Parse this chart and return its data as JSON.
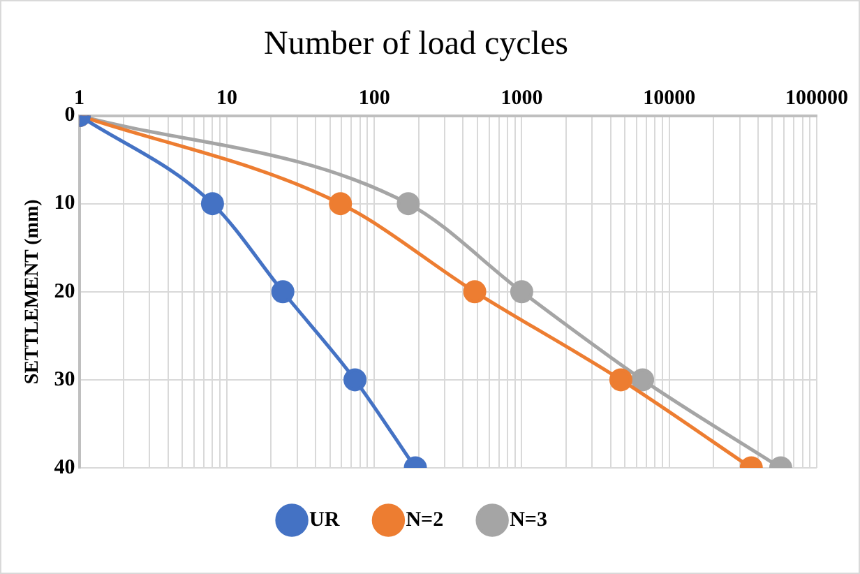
{
  "chart_data": {
    "type": "line",
    "title": "Number of load cycles",
    "ylabel": "SETTLEMENT (mm)",
    "log": "x",
    "xlim": [
      1,
      100000
    ],
    "xticks": [
      1,
      {
        "value": 2,
        "label": null
      },
      {
        "value": 3,
        "label": null
      },
      {
        "value": 4,
        "label": null
      },
      {
        "value": 5,
        "label": null
      },
      {
        "value": 6,
        "label": null
      },
      {
        "value": 7,
        "label": null
      },
      {
        "value": 8,
        "label": null
      },
      {
        "value": 9,
        "label": null
      },
      10,
      {
        "value": 20,
        "label": null
      },
      {
        "value": 30,
        "label": null
      },
      {
        "value": 40,
        "label": null
      },
      {
        "value": 50,
        "label": null
      },
      {
        "value": 60,
        "label": null
      },
      {
        "value": 70,
        "label": null
      },
      {
        "value": 80,
        "label": null
      },
      {
        "value": 90,
        "label": null
      },
      100,
      {
        "value": 200,
        "label": null
      },
      {
        "value": 300,
        "label": null
      },
      {
        "value": 400,
        "label": null
      },
      {
        "value": 500,
        "label": null
      },
      {
        "value": 600,
        "label": null
      },
      {
        "value": 700,
        "label": null
      },
      {
        "value": 800,
        "label": null
      },
      {
        "value": 900,
        "label": null
      },
      1000,
      {
        "value": 2000,
        "label": null
      },
      {
        "value": 3000,
        "label": null
      },
      {
        "value": 4000,
        "label": null
      },
      {
        "value": 5000,
        "label": null
      },
      {
        "value": 6000,
        "label": null
      },
      {
        "value": 7000,
        "label": null
      },
      {
        "value": 8000,
        "label": null
      },
      {
        "value": 9000,
        "label": null
      },
      10000,
      {
        "value": 20000,
        "label": null
      },
      {
        "value": 30000,
        "label": null
      },
      {
        "value": 40000,
        "label": null
      },
      {
        "value": 50000,
        "label": null
      },
      {
        "value": 60000,
        "label": null
      },
      {
        "value": 70000,
        "label": null
      },
      {
        "value": 80000,
        "label": null
      },
      {
        "value": 90000,
        "label": null
      },
      100000
    ],
    "ylim": [
      40,
      0
    ],
    "yticks": [
      0,
      10,
      20,
      30,
      40
    ],
    "grid": true,
    "legend": "bottom",
    "marker": "circle",
    "line_style": "solid",
    "series": [
      {
        "name": "UR",
        "color": "#4472c4",
        "x": [
          1,
          8,
          24,
          74,
          190
        ],
        "values": [
          0,
          10,
          20,
          30,
          40
        ]
      },
      {
        "name": "N=2",
        "color": "#ed7d31",
        "x": [
          1,
          59,
          480,
          4700,
          36000
        ],
        "values": [
          0,
          10,
          20,
          30,
          40
        ]
      },
      {
        "name": "N=3",
        "color": "#a5a5a5",
        "x": [
          1,
          170,
          1000,
          6600,
          57000
        ],
        "values": [
          0,
          10,
          20,
          30,
          40
        ]
      }
    ]
  }
}
